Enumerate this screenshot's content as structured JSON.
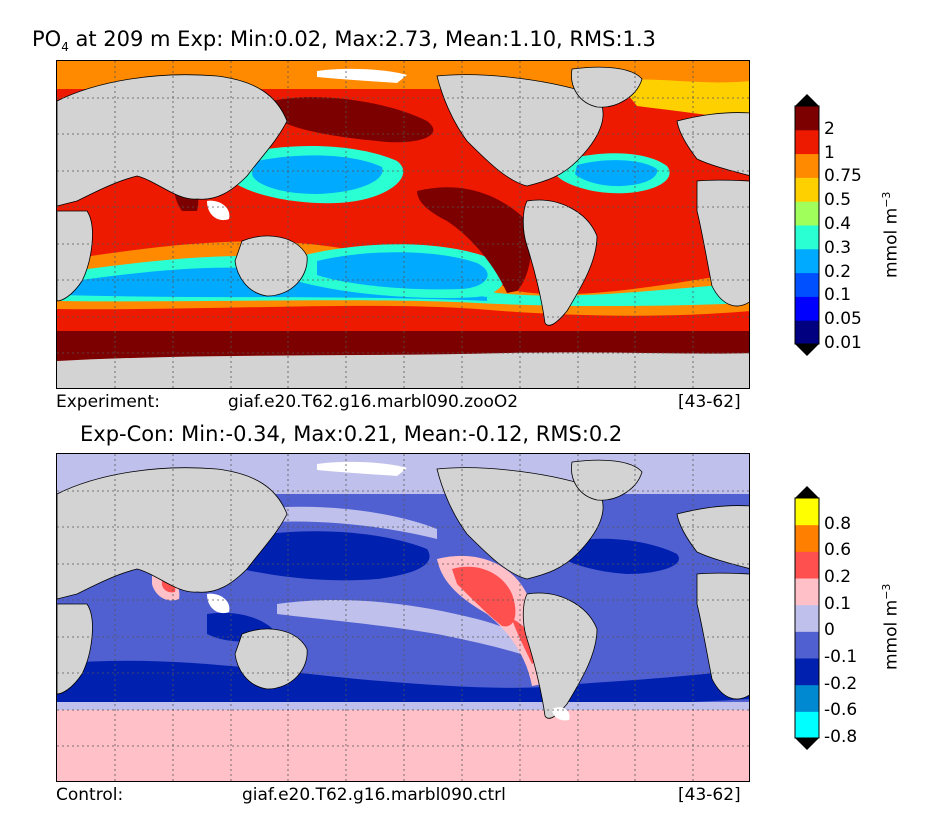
{
  "top": {
    "title_prefix": "PO",
    "title_sub": "4",
    "title_rest": " at 209 m Exp: Min:0.02, Max:2.73, Mean:1.10, RMS:1.3",
    "caption_left": "Experiment:",
    "caption_mid": "giaf.e20.T62.g16.marbl090.zooO2",
    "caption_right": "[43-62]",
    "unit_base": "mmol m",
    "unit_exp": "−3",
    "ticks": [
      "2",
      "1",
      "0.75",
      "0.5",
      "0.4",
      "0.3",
      "0.2",
      "0.1",
      "0.05",
      "0.01"
    ],
    "colors": [
      "#000080",
      "#0000ff",
      "#0050ff",
      "#00aaff",
      "#2affd4",
      "#a0ff5a",
      "#ffd000",
      "#ff8a00",
      "#ee1a00",
      "#7d0000"
    ]
  },
  "bottom": {
    "title": "Exp-Con: Min:-0.34, Max:0.21, Mean:-0.12, RMS:0.2",
    "caption_left": "Control:",
    "caption_mid": "giaf.e20.T62.g16.marbl090.ctrl",
    "caption_right": "[43-62]",
    "unit_base": "mmol m",
    "unit_exp": "−3",
    "ticks": [
      "0.8",
      "0.6",
      "0.2",
      "0.1",
      "0",
      "-0.1",
      "-0.2",
      "-0.6",
      "-0.8"
    ],
    "colors": [
      "#00ffff",
      "#0088d0",
      "#0020b0",
      "#5060d0",
      "#c0c0ec",
      "#ffc0c8",
      "#ff5050",
      "#ff8000",
      "#ffff00"
    ]
  },
  "land_color": "#d3d3d3"
}
